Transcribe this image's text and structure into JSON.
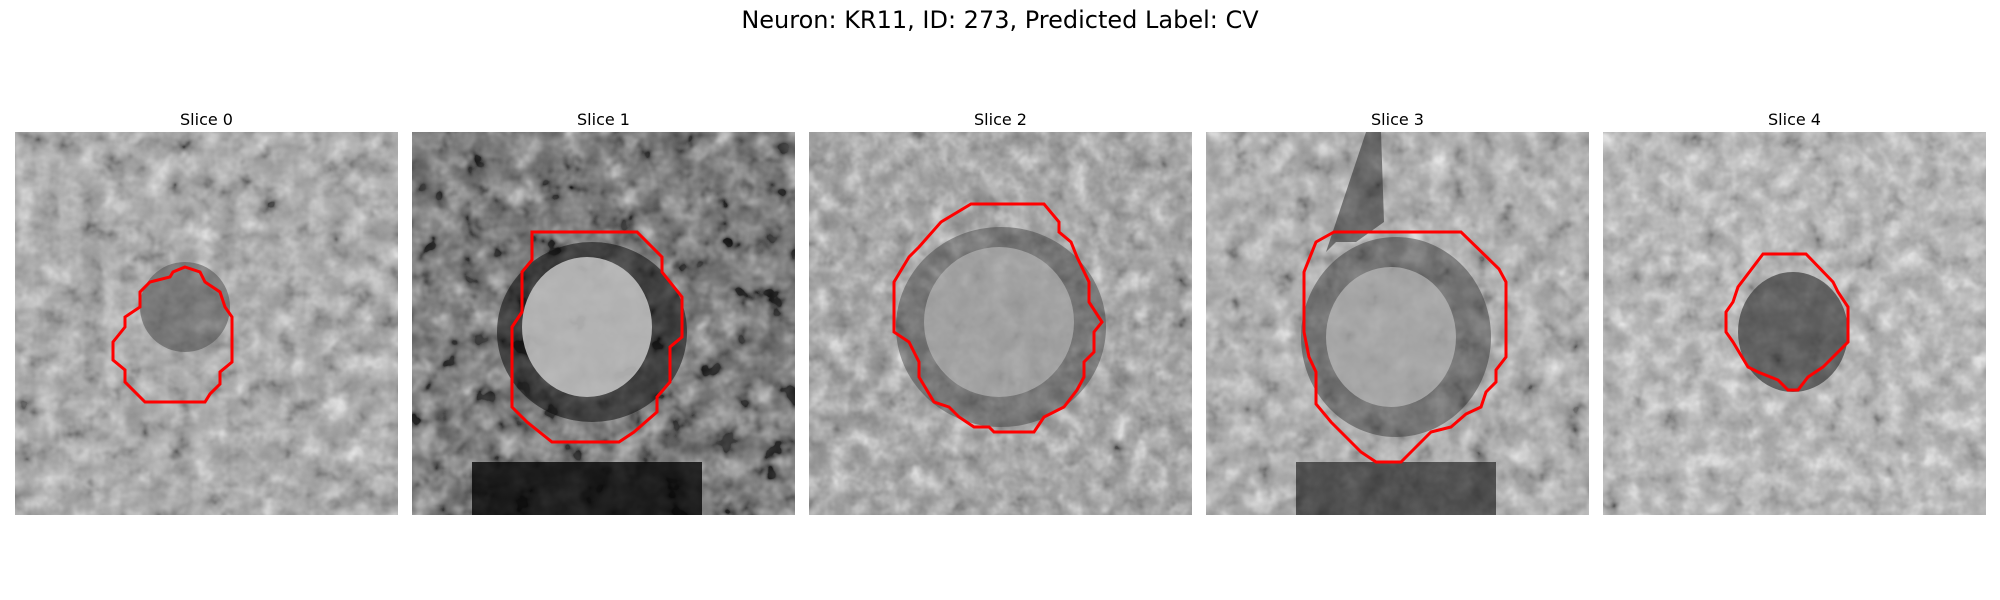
{
  "figure": {
    "title": "Neuron: KR11, ID: 273, Predicted Label: CV",
    "contour_color": "#ff0000"
  },
  "slices": [
    {
      "title": "Slice 0"
    },
    {
      "title": "Slice 1"
    },
    {
      "title": "Slice 2"
    },
    {
      "title": "Slice 3"
    },
    {
      "title": "Slice 4"
    }
  ]
}
